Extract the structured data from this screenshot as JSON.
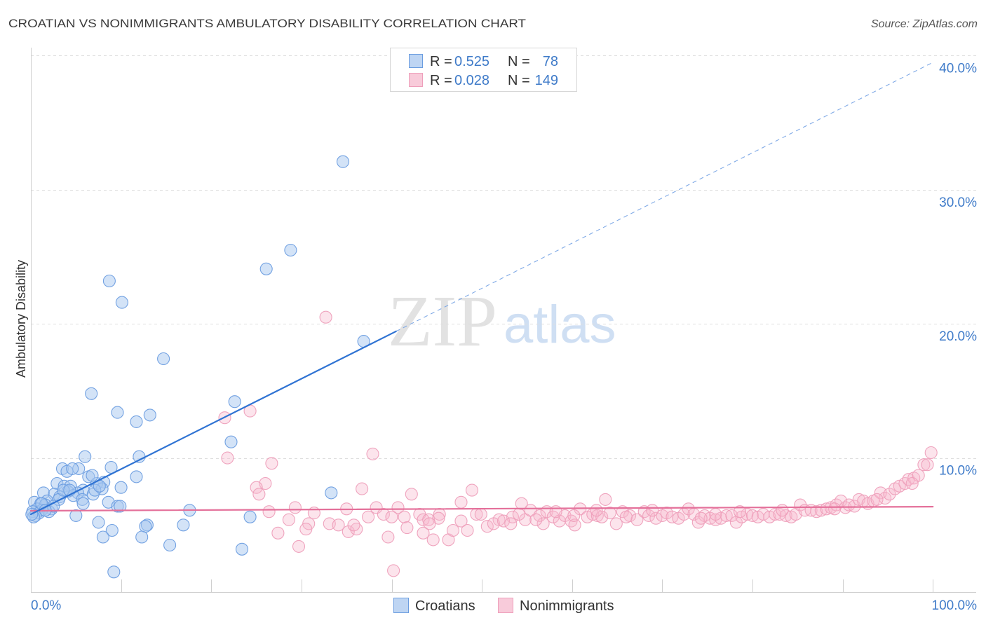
{
  "source": "Source: ZipAtlas.com",
  "watermark": {
    "part1": "ZIP",
    "part2": "atlas"
  },
  "colors": {
    "accent_text": "#3f7bc9",
    "grid": "#dedede",
    "axis": "#cfcfcf"
  },
  "legend": {
    "rows": [
      {
        "r_label": "R =",
        "r_value": "0.525",
        "n_label": "N =",
        "n_value": "78"
      },
      {
        "r_label": "R =",
        "r_value": "0.028",
        "n_label": "N =",
        "n_value": "149"
      }
    ]
  },
  "chart_data": {
    "type": "scatter",
    "title": "CROATIAN VS NONIMMIGRANTS AMBULATORY DISABILITY CORRELATION CHART",
    "ylabel": "Ambulatory Disability",
    "xlim": [
      0,
      104.8
    ],
    "ylim": [
      0,
      40.6
    ],
    "grid": true,
    "x_ticks": [
      {
        "value": 0,
        "label": "0.0%"
      },
      {
        "value": 100,
        "label": "100.0%"
      }
    ],
    "x_minor_ticks": [
      10,
      20,
      30,
      40,
      50,
      60,
      70,
      80,
      90,
      100
    ],
    "y_ticks": [
      {
        "value": 10,
        "label": "10.0%"
      },
      {
        "value": 20,
        "label": "20.0%"
      },
      {
        "value": 30,
        "label": "30.0%"
      },
      {
        "value": 40,
        "label": "40.0%"
      }
    ],
    "series": [
      {
        "name": "Croatians",
        "fill": "#a8c7ef",
        "stroke": "#6b9de0",
        "line": "#2f73d3",
        "dash_line": "#7fa9e6",
        "r": 0.525,
        "n": 78,
        "trend": {
          "x": [
            0,
            100
          ],
          "y": [
            5.8,
            39.5
          ],
          "solid_until_x": 40.5
        },
        "points": [
          [
            34.6,
            32.1
          ],
          [
            28.8,
            25.5
          ],
          [
            26.1,
            24.1
          ],
          [
            8.7,
            23.2
          ],
          [
            10.1,
            21.6
          ],
          [
            36.9,
            18.7
          ],
          [
            14.7,
            17.4
          ],
          [
            6.7,
            14.8
          ],
          [
            22.6,
            14.2
          ],
          [
            9.6,
            13.4
          ],
          [
            13.2,
            13.2
          ],
          [
            11.7,
            12.7
          ],
          [
            22.2,
            11.2
          ],
          [
            6.0,
            10.1
          ],
          [
            12.0,
            10.1
          ],
          [
            3.5,
            9.2
          ],
          [
            5.3,
            9.2
          ],
          [
            8.9,
            9.3
          ],
          [
            4.0,
            9.0
          ],
          [
            11.7,
            8.6
          ],
          [
            6.4,
            8.6
          ],
          [
            2.9,
            8.1
          ],
          [
            8.1,
            8.2
          ],
          [
            7.3,
            8.1
          ],
          [
            3.7,
            7.9
          ],
          [
            4.4,
            7.9
          ],
          [
            5.8,
            7.6
          ],
          [
            10.0,
            7.8
          ],
          [
            1.4,
            7.4
          ],
          [
            4.1,
            7.5
          ],
          [
            5.2,
            7.4
          ],
          [
            6.9,
            7.3
          ],
          [
            33.3,
            7.4
          ],
          [
            2.6,
            7.3
          ],
          [
            7.9,
            7.7
          ],
          [
            3.2,
            7.1
          ],
          [
            4.7,
            7.2
          ],
          [
            7.1,
            7.6
          ],
          [
            1.8,
            6.8
          ],
          [
            5.7,
            6.9
          ],
          [
            0.4,
            6.7
          ],
          [
            3.1,
            6.9
          ],
          [
            1.1,
            6.6
          ],
          [
            8.6,
            6.7
          ],
          [
            1.6,
            6.5
          ],
          [
            9.6,
            6.4
          ],
          [
            5.8,
            6.6
          ],
          [
            9.9,
            6.4
          ],
          [
            2.3,
            6.2
          ],
          [
            17.6,
            6.1
          ],
          [
            0.7,
            6.2
          ],
          [
            1.2,
            6.1
          ],
          [
            0.2,
            6.0
          ],
          [
            0.9,
            5.9
          ],
          [
            0.5,
            5.7
          ],
          [
            5.0,
            5.7
          ],
          [
            24.3,
            5.6
          ],
          [
            0.3,
            5.6
          ],
          [
            7.5,
            5.2
          ],
          [
            12.9,
            5.0
          ],
          [
            12.7,
            4.9
          ],
          [
            16.9,
            5.0
          ],
          [
            9.0,
            4.6
          ],
          [
            8.0,
            4.1
          ],
          [
            12.3,
            4.1
          ],
          [
            15.4,
            3.5
          ],
          [
            23.4,
            3.2
          ],
          [
            9.2,
            1.5
          ],
          [
            2.0,
            6.0
          ],
          [
            4.6,
            9.2
          ],
          [
            3.6,
            7.6
          ],
          [
            6.8,
            8.7
          ],
          [
            1.2,
            6.6
          ],
          [
            2.5,
            6.4
          ],
          [
            0.1,
            5.8
          ],
          [
            4.3,
            7.6
          ],
          [
            7.6,
            7.9
          ],
          [
            1.6,
            6.1
          ]
        ]
      },
      {
        "name": "Nonimmigrants",
        "fill": "#f6b9cd",
        "stroke": "#ee9fbb",
        "line": "#e4709a",
        "r": 0.028,
        "n": 149,
        "trend": {
          "x": [
            0,
            100
          ],
          "y": [
            6.06,
            6.37
          ]
        },
        "points": [
          [
            32.7,
            20.5
          ],
          [
            24.3,
            13.5
          ],
          [
            21.5,
            13.0
          ],
          [
            37.9,
            10.3
          ],
          [
            21.8,
            10.0
          ],
          [
            26.7,
            9.6
          ],
          [
            26.0,
            8.1
          ],
          [
            36.7,
            7.7
          ],
          [
            25.0,
            7.8
          ],
          [
            25.3,
            7.3
          ],
          [
            42.2,
            7.3
          ],
          [
            48.9,
            7.6
          ],
          [
            54.4,
            6.6
          ],
          [
            63.7,
            6.9
          ],
          [
            29.3,
            6.3
          ],
          [
            26.4,
            6.0
          ],
          [
            35.0,
            6.2
          ],
          [
            38.3,
            6.3
          ],
          [
            39.1,
            5.8
          ],
          [
            40.7,
            6.3
          ],
          [
            43.1,
            5.8
          ],
          [
            45.3,
            5.8
          ],
          [
            31.4,
            5.9
          ],
          [
            28.6,
            5.4
          ],
          [
            33.1,
            5.1
          ],
          [
            34.1,
            5.0
          ],
          [
            37.4,
            5.6
          ],
          [
            40.0,
            5.6
          ],
          [
            41.4,
            5.6
          ],
          [
            43.5,
            5.4
          ],
          [
            44.1,
            5.4
          ],
          [
            47.7,
            5.3
          ],
          [
            49.4,
            5.8
          ],
          [
            51.9,
            5.4
          ],
          [
            53.4,
            5.6
          ],
          [
            54.8,
            5.4
          ],
          [
            55.4,
            6.1
          ],
          [
            56.4,
            5.7
          ],
          [
            57.2,
            6.0
          ],
          [
            57.9,
            5.6
          ],
          [
            58.6,
            5.3
          ],
          [
            59.2,
            5.7
          ],
          [
            59.9,
            5.3
          ],
          [
            60.9,
            6.2
          ],
          [
            61.7,
            5.6
          ],
          [
            62.3,
            5.8
          ],
          [
            62.8,
            5.7
          ],
          [
            63.3,
            5.6
          ],
          [
            64.2,
            5.9
          ],
          [
            64.9,
            5.1
          ],
          [
            65.6,
            6.0
          ],
          [
            66.4,
            5.7
          ],
          [
            67.2,
            5.4
          ],
          [
            68.0,
            6.0
          ],
          [
            68.5,
            5.7
          ],
          [
            69.3,
            5.5
          ],
          [
            70.0,
            5.7
          ],
          [
            70.5,
            5.9
          ],
          [
            71.1,
            5.6
          ],
          [
            71.8,
            5.5
          ],
          [
            72.4,
            5.8
          ],
          [
            72.9,
            6.2
          ],
          [
            73.5,
            5.8
          ],
          [
            74.0,
            5.2
          ],
          [
            74.7,
            5.7
          ],
          [
            75.3,
            5.5
          ],
          [
            75.9,
            5.4
          ],
          [
            76.5,
            5.5
          ],
          [
            77.1,
            5.7
          ],
          [
            77.7,
            5.7
          ],
          [
            78.2,
            5.2
          ],
          [
            78.8,
            5.6
          ],
          [
            79.4,
            5.8
          ],
          [
            80.0,
            5.7
          ],
          [
            80.6,
            5.6
          ],
          [
            81.2,
            5.8
          ],
          [
            81.9,
            5.6
          ],
          [
            82.5,
            5.8
          ],
          [
            83.0,
            5.8
          ],
          [
            83.7,
            5.7
          ],
          [
            84.3,
            5.6
          ],
          [
            84.8,
            5.8
          ],
          [
            85.3,
            6.5
          ],
          [
            85.8,
            6.1
          ],
          [
            86.5,
            6.1
          ],
          [
            87.1,
            6.0
          ],
          [
            87.6,
            6.1
          ],
          [
            88.2,
            6.2
          ],
          [
            88.7,
            6.3
          ],
          [
            89.3,
            6.5
          ],
          [
            89.8,
            6.8
          ],
          [
            90.3,
            6.3
          ],
          [
            90.7,
            6.5
          ],
          [
            91.3,
            6.4
          ],
          [
            91.8,
            6.9
          ],
          [
            92.3,
            6.8
          ],
          [
            92.8,
            6.6
          ],
          [
            93.4,
            6.8
          ],
          [
            94.2,
            7.4
          ],
          [
            94.7,
            7.0
          ],
          [
            95.2,
            7.3
          ],
          [
            95.8,
            7.7
          ],
          [
            96.3,
            7.9
          ],
          [
            96.9,
            8.1
          ],
          [
            97.3,
            8.4
          ],
          [
            97.9,
            8.5
          ],
          [
            98.4,
            8.7
          ],
          [
            99.0,
            9.5
          ],
          [
            99.4,
            9.5
          ],
          [
            99.8,
            10.4
          ],
          [
            30.8,
            5.1
          ],
          [
            30.5,
            4.7
          ],
          [
            27.4,
            4.4
          ],
          [
            29.7,
            3.4
          ],
          [
            35.2,
            4.5
          ],
          [
            36.1,
            4.7
          ],
          [
            39.6,
            4.1
          ],
          [
            41.7,
            4.8
          ],
          [
            44.6,
            3.9
          ],
          [
            46.3,
            3.9
          ],
          [
            46.8,
            4.6
          ],
          [
            48.4,
            4.6
          ],
          [
            50.6,
            4.9
          ],
          [
            51.3,
            5.1
          ],
          [
            52.4,
            5.3
          ],
          [
            56.8,
            5.1
          ],
          [
            60.3,
            5.0
          ],
          [
            40.2,
            1.6
          ],
          [
            43.5,
            4.4
          ],
          [
            45.2,
            5.5
          ],
          [
            47.7,
            6.7
          ],
          [
            49.9,
            5.8
          ],
          [
            54.1,
            5.8
          ],
          [
            56.0,
            5.4
          ],
          [
            58.2,
            6.0
          ],
          [
            60.2,
            5.7
          ],
          [
            62.7,
            6.1
          ],
          [
            66.0,
            5.6
          ],
          [
            68.9,
            6.1
          ],
          [
            74.3,
            5.5
          ],
          [
            78.6,
            6.0
          ],
          [
            83.3,
            6.1
          ],
          [
            89.1,
            6.2
          ],
          [
            93.8,
            6.9
          ],
          [
            97.7,
            8.1
          ],
          [
            35.8,
            5.0
          ],
          [
            44.2,
            5.1
          ],
          [
            53.2,
            5.1
          ],
          [
            75.9,
            5.8
          ]
        ]
      }
    ]
  }
}
